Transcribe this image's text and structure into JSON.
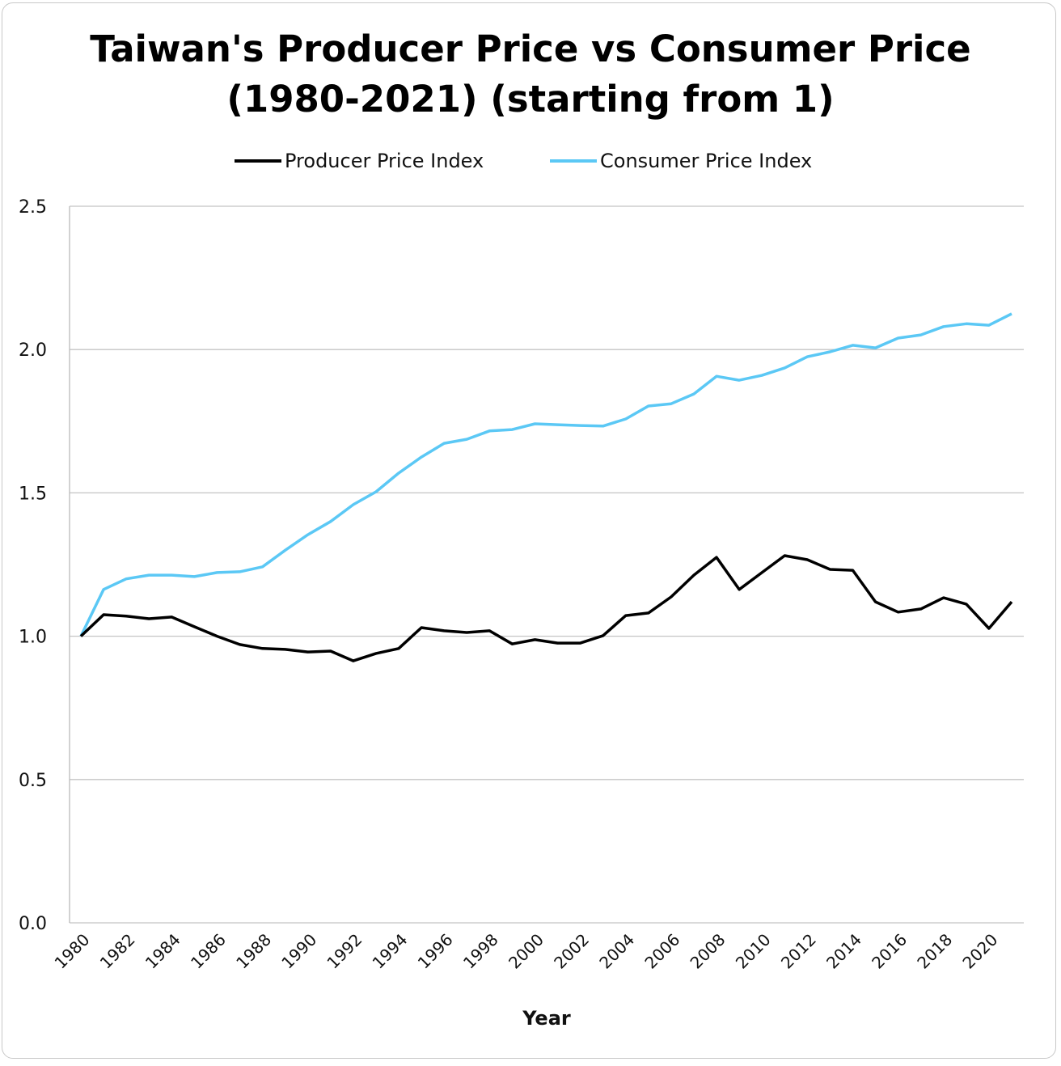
{
  "chart_data": {
    "type": "line",
    "title": "Taiwan's Producer Price vs Consumer Price",
    "subtitle": "(1980-2021) (starting from 1)",
    "xlabel": "Year",
    "ylabel": "",
    "ylim": [
      0,
      2.5
    ],
    "yticks": [
      "0.0",
      "0.5",
      "1.0",
      "1.5",
      "2.0",
      "2.5"
    ],
    "xtick_labels": [
      "1980",
      "1982",
      "1984",
      "1986",
      "1988",
      "1990",
      "1992",
      "1994",
      "1996",
      "1998",
      "2000",
      "2002",
      "2004",
      "2006",
      "2008",
      "2010",
      "2012",
      "2014",
      "2016",
      "2018",
      "2020"
    ],
    "grid": true,
    "legend_position": "top",
    "x": [
      1980,
      1981,
      1982,
      1983,
      1984,
      1985,
      1986,
      1987,
      1988,
      1989,
      1990,
      1991,
      1992,
      1993,
      1994,
      1995,
      1996,
      1997,
      1998,
      1999,
      2000,
      2001,
      2002,
      2003,
      2004,
      2005,
      2006,
      2007,
      2008,
      2009,
      2010,
      2011,
      2012,
      2013,
      2014,
      2015,
      2016,
      2017,
      2018,
      2019,
      2020,
      2021
    ],
    "series": [
      {
        "name": "Producer Price Index",
        "color": "#000000",
        "values": [
          1.0,
          1.075,
          1.07,
          1.061,
          1.067,
          1.033,
          1.0,
          0.971,
          0.957,
          0.954,
          0.945,
          0.948,
          0.914,
          0.94,
          0.957,
          1.03,
          1.019,
          1.013,
          1.019,
          0.973,
          0.988,
          0.976,
          0.976,
          1.002,
          1.072,
          1.081,
          1.137,
          1.213,
          1.275,
          1.163,
          1.222,
          1.281,
          1.267,
          1.233,
          1.23,
          1.12,
          1.084,
          1.095,
          1.134,
          1.112,
          1.027,
          1.12
        ]
      },
      {
        "name": "Consumer Price Index",
        "color": "#5bc8f5",
        "values": [
          1.0,
          1.163,
          1.2,
          1.213,
          1.213,
          1.208,
          1.222,
          1.225,
          1.242,
          1.3,
          1.354,
          1.4,
          1.459,
          1.504,
          1.569,
          1.625,
          1.673,
          1.687,
          1.716,
          1.721,
          1.741,
          1.738,
          1.735,
          1.733,
          1.758,
          1.803,
          1.811,
          1.845,
          1.907,
          1.893,
          1.91,
          1.936,
          1.975,
          1.992,
          2.015,
          2.006,
          2.04,
          2.051,
          2.08,
          2.09,
          2.085,
          2.125
        ]
      }
    ]
  }
}
